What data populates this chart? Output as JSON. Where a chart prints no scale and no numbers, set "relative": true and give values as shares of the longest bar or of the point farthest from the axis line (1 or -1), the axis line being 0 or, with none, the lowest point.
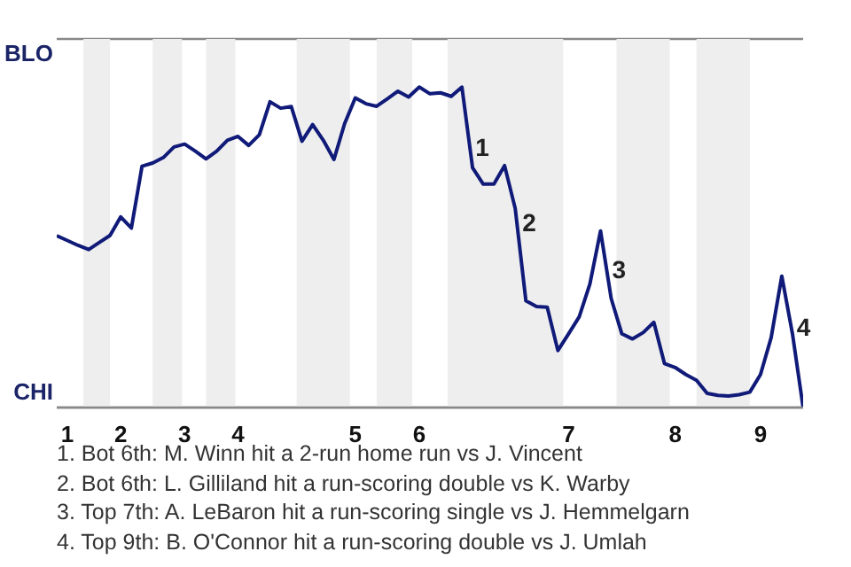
{
  "chart_data": {
    "type": "line",
    "relative": true,
    "categories": [
      null,
      "1",
      null,
      null,
      null,
      null,
      "2",
      null,
      null,
      null,
      null,
      null,
      "3",
      null,
      null,
      null,
      null,
      "4",
      null,
      null,
      null,
      null,
      null,
      null,
      null,
      null,
      null,
      null,
      "5",
      null,
      null,
      null,
      null,
      null,
      "6",
      null,
      null,
      null,
      null,
      null,
      null,
      null,
      null,
      null,
      null,
      null,
      null,
      null,
      "7",
      null,
      null,
      null,
      null,
      null,
      null,
      null,
      null,
      null,
      "8",
      null,
      null,
      null,
      null,
      null,
      null,
      null,
      "9",
      null,
      null,
      null,
      null
    ],
    "series": [
      {
        "color": "#101a78",
        "values": [
          0.536,
          0.521,
          0.506,
          0.493,
          0.515,
          0.537,
          0.595,
          0.56,
          0.753,
          0.763,
          0.78,
          0.813,
          0.822,
          0.8,
          0.776,
          0.8,
          0.834,
          0.846,
          0.818,
          0.851,
          0.954,
          0.934,
          0.939,
          0.831,
          0.883,
          0.834,
          0.774,
          0.886,
          0.966,
          0.948,
          0.94,
          0.963,
          0.987,
          0.969,
          1,
          0.979,
          0.982,
          0.971,
          1,
          0.748,
          0.697,
          0.697,
          0.755,
          0.621,
          0.333,
          0.315,
          0.313,
          0.178,
          0.23,
          0.283,
          0.385,
          0.551,
          0.34,
          0.23,
          0.214,
          0.234,
          0.266,
          0.137,
          0.125,
          0.103,
          0.085,
          0.044,
          0.038,
          0.036,
          0.04,
          0.048,
          0.103,
          0.218,
          0.41,
          0.23,
          0
        ]
      }
    ],
    "legend": false,
    "marker": "none",
    "line_style": "solid",
    "annotations": [
      "BLO",
      "CHI",
      "1",
      "2",
      "3",
      "4",
      "1. Bot 6th: M. Winn hit a 2-run home run vs J. Vincent",
      "2. Bot 6th: L. Gilliland hit a run-scoring double vs K. Warby",
      "3. Top 7th: A. LeBaron hit a run-scoring single vs J. Hemmelgarn",
      "4. Top 9th: B. O'Connor hit a run-scoring double vs J. Umlah"
    ]
  }
}
